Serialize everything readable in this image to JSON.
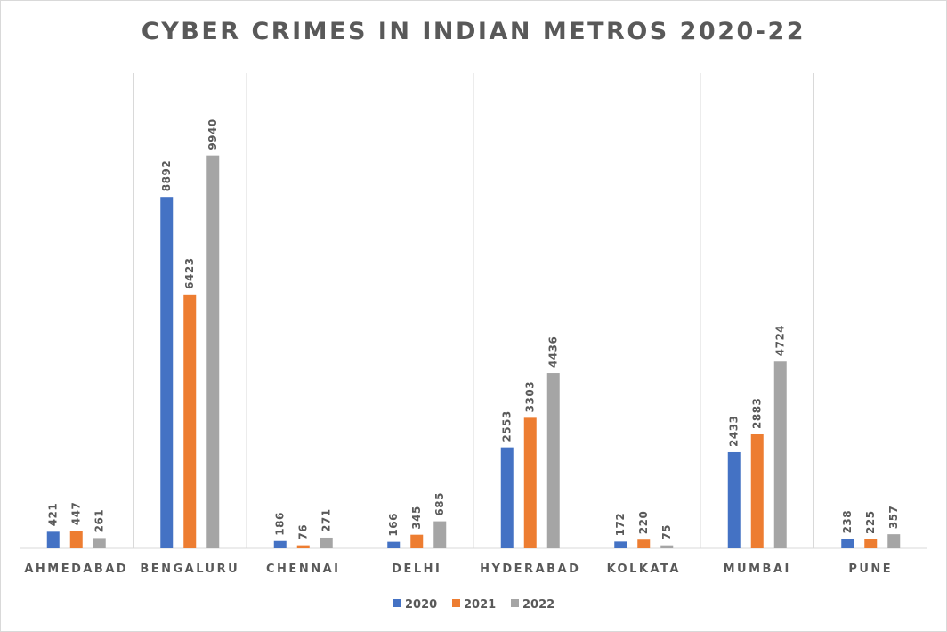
{
  "chart_data": {
    "type": "bar",
    "title": "CYBER CRIMES IN INDIAN METROS 2020-22",
    "xlabel": "",
    "ylabel": "",
    "ylim": [
      0,
      10000
    ],
    "grid": "vertical category separators",
    "legend_position": "bottom",
    "categories": [
      "AHMEDABAD",
      "BENGALURU",
      "CHENNAI",
      "DELHI",
      "HYDERABAD",
      "KOLKATA",
      "MUMBAI",
      "PUNE"
    ],
    "series": [
      {
        "name": "2020",
        "color": "#4472c4",
        "values": [
          421,
          8892,
          186,
          166,
          2553,
          172,
          2433,
          238
        ]
      },
      {
        "name": "2021",
        "color": "#ed7d31",
        "values": [
          447,
          6423,
          76,
          345,
          3303,
          220,
          2883,
          225
        ]
      },
      {
        "name": "2022",
        "color": "#a5a5a5",
        "values": [
          261,
          9940,
          271,
          685,
          4436,
          75,
          4724,
          357
        ]
      }
    ]
  }
}
